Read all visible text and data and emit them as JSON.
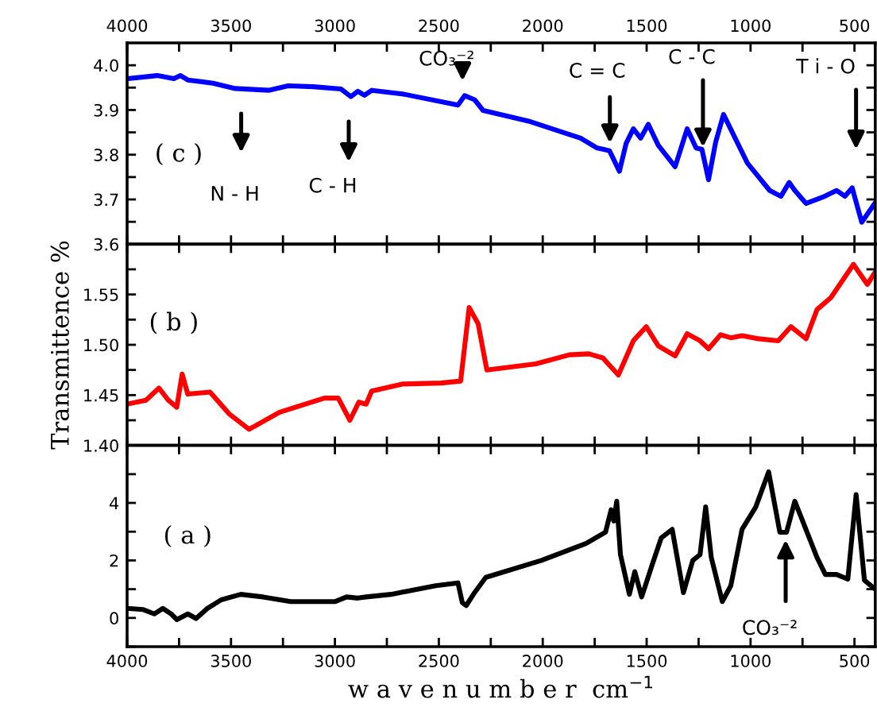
{
  "chart_data": [
    {
      "type": "line",
      "xlim": [
        4000,
        400
      ],
      "xticks": [
        4000,
        {
          "value": 3750,
          "label": null
        },
        3500,
        {
          "value": 3250,
          "label": null
        },
        3000,
        {
          "value": 2750,
          "label": null
        },
        2500,
        {
          "value": 2250,
          "label": null
        },
        2000,
        {
          "value": 1750,
          "label": null
        },
        1500,
        {
          "value": 1250,
          "label": null
        },
        1000,
        {
          "value": 750,
          "label": null
        },
        500
      ],
      "x2lim": [
        4000,
        400
      ],
      "x2ticks": [
        4000,
        {
          "value": 3750,
          "label": null
        },
        3500,
        {
          "value": 3250,
          "label": null
        },
        3000,
        {
          "value": 2750,
          "label": null
        },
        2500,
        {
          "value": 2250,
          "label": null
        },
        2000,
        {
          "value": 1750,
          "label": null
        },
        1500,
        {
          "value": 1250,
          "label": null
        },
        1000,
        {
          "value": 750,
          "label": null
        },
        500
      ],
      "ylim": [
        3.6,
        4.05
      ],
      "yticks": [
        3.6,
        {
          "value": 3.65,
          "label": null
        },
        3.7,
        {
          "value": 3.75,
          "label": null
        },
        3.8,
        {
          "value": 3.85,
          "label": null
        },
        3.9,
        {
          "value": 3.95,
          "label": null
        },
        {
          "value": 4.0,
          "label": "4.0"
        }
      ],
      "tick_labels": "y",
      "x": [
        4000,
        3855,
        3775,
        3743,
        3708,
        3587,
        3480,
        3319,
        3225,
        3105,
        2971,
        2923,
        2890,
        2858,
        2823,
        2676,
        2408,
        2376,
        2328,
        2287,
        2060,
        1818,
        1738,
        1679,
        1631,
        1599,
        1564,
        1529,
        1492,
        1444,
        1363,
        1305,
        1262,
        1234,
        1202,
        1168,
        1130,
        1015,
        908,
        854,
        814,
        787,
        733,
        653,
        586,
        546,
        511,
        465,
        404
      ],
      "series": [
        {
          "color": "#0000ff",
          "values": [
            3.97,
            3.977,
            3.97,
            3.977,
            3.967,
            3.96,
            3.948,
            3.944,
            3.954,
            3.952,
            3.947,
            3.93,
            3.942,
            3.933,
            3.944,
            3.936,
            3.911,
            3.932,
            3.923,
            3.899,
            3.874,
            3.837,
            3.815,
            3.809,
            3.763,
            3.825,
            3.858,
            3.837,
            3.868,
            3.821,
            3.773,
            3.858,
            3.815,
            3.812,
            3.744,
            3.828,
            3.89,
            3.781,
            3.72,
            3.707,
            3.738,
            3.72,
            3.691,
            3.705,
            3.72,
            3.707,
            3.726,
            3.649,
            3.69
          ]
        }
      ],
      "annotations": [
        "( c )",
        "N - H",
        "C - H",
        {
          "text": "CO₃⁻²",
          "x": 2386,
          "y": 3.932
        },
        {
          "text": "C = C",
          "x": 1677,
          "y": 3.809
        },
        {
          "text": "C - C",
          "x": 1229,
          "y": 3.8
        },
        "T i - O"
      ]
    },
    {
      "type": "line",
      "xlim": [
        4000,
        400
      ],
      "xticks": [
        4000,
        {
          "value": 3750,
          "label": null
        },
        3500,
        {
          "value": 3250,
          "label": null
        },
        3000,
        {
          "value": 2750,
          "label": null
        },
        2500,
        {
          "value": 2250,
          "label": null
        },
        2000,
        {
          "value": 1750,
          "label": null
        },
        1500,
        {
          "value": 1250,
          "label": null
        },
        1000,
        {
          "value": 750,
          "label": null
        },
        500
      ],
      "ylim": [
        1.4,
        1.6
      ],
      "yticks": [
        {
          "value": 1.4,
          "label": "1.40"
        },
        {
          "value": 1.425,
          "label": null
        },
        1.45,
        {
          "value": 1.475,
          "label": null
        },
        {
          "value": 1.5,
          "label": "1.50"
        },
        {
          "value": 1.525,
          "label": null
        },
        1.55,
        {
          "value": 1.575,
          "label": null
        },
        {
          "value": 1.6,
          "label": null
        }
      ],
      "tick_labels": "y",
      "ylabel": "Transmittence %",
      "x": [
        4000,
        3909,
        3847,
        3802,
        3761,
        3735,
        3708,
        3601,
        3507,
        3413,
        3266,
        3051,
        2984,
        2928,
        2885,
        2850,
        2823,
        2676,
        2488,
        2395,
        2354,
        2311,
        2269,
        2033,
        1872,
        1778,
        1711,
        1636,
        1564,
        1502,
        1444,
        1363,
        1305,
        1243,
        1202,
        1144,
        1095,
        1041,
        961,
        867,
        806,
        733,
        680,
        613,
        505,
        438,
        404
      ],
      "series": [
        {
          "color": "#ff0000",
          "values": [
            1.441,
            1.445,
            1.457,
            1.445,
            1.438,
            1.471,
            1.451,
            1.453,
            1.431,
            1.416,
            1.433,
            1.447,
            1.447,
            1.425,
            1.443,
            1.441,
            1.454,
            1.461,
            1.462,
            1.464,
            1.537,
            1.521,
            1.475,
            1.481,
            1.49,
            1.491,
            1.487,
            1.47,
            1.504,
            1.518,
            1.499,
            1.489,
            1.511,
            1.504,
            1.496,
            1.51,
            1.507,
            1.509,
            1.506,
            1.504,
            1.518,
            1.506,
            1.535,
            1.547,
            1.58,
            1.56,
            1.571
          ]
        }
      ],
      "annotations": [
        "( b )"
      ]
    },
    {
      "type": "line",
      "xlim": [
        4000,
        400
      ],
      "xticks": [
        4000,
        {
          "value": 3750,
          "label": null
        },
        3500,
        {
          "value": 3250,
          "label": null
        },
        3000,
        {
          "value": 2750,
          "label": null
        },
        2500,
        {
          "value": 2250,
          "label": null
        },
        2000,
        {
          "value": 1750,
          "label": null
        },
        1500,
        {
          "value": 1250,
          "label": null
        },
        1000,
        {
          "value": 750,
          "label": null
        },
        500
      ],
      "ylim": [
        -1,
        6
      ],
      "yticks": [
        {
          "value": -1,
          "label": null
        },
        0,
        {
          "value": 1,
          "label": null
        },
        2,
        {
          "value": 3,
          "label": null
        },
        4,
        {
          "value": 5,
          "label": null
        }
      ],
      "xlabel": "w a v e n u m b e r  cm$^{−1}$",
      "x": [
        4000,
        3922,
        3869,
        3828,
        3788,
        3761,
        3708,
        3668,
        3614,
        3547,
        3453,
        3346,
        3212,
        2998,
        2944,
        2890,
        2850,
        2730,
        2515,
        2408,
        2387,
        2368,
        2328,
        2274,
        2006,
        1792,
        1698,
        1671,
        1658,
        1644,
        1626,
        1583,
        1557,
        1524,
        1471,
        1430,
        1377,
        1323,
        1278,
        1243,
        1216,
        1189,
        1136,
        1095,
        1041,
        975,
        913,
        859,
        827,
        787,
        680,
        640,
        586,
        532,
        492,
        452,
        404
      ],
      "series": [
        {
          "color": "#000000",
          "values": [
            0.33,
            0.29,
            0.14,
            0.33,
            0.14,
            -0.06,
            0.14,
            -0.02,
            0.33,
            0.63,
            0.82,
            0.73,
            0.57,
            0.57,
            0.73,
            0.69,
            0.73,
            0.82,
            1.12,
            1.22,
            0.53,
            0.43,
            0.88,
            1.41,
            2.0,
            2.59,
            2.98,
            3.76,
            3.37,
            4.06,
            2.2,
            0.82,
            1.61,
            0.73,
            1.9,
            2.78,
            3.08,
            0.88,
            2.0,
            2.2,
            3.86,
            2.1,
            0.57,
            1.12,
            3.08,
            3.86,
            5.08,
            2.98,
            2.98,
            4.06,
            2.1,
            1.51,
            1.51,
            1.35,
            4.29,
            1.31,
            1.02
          ]
        }
      ],
      "annotations": [
        "( a )",
        {
          "text": "CO₃⁻²",
          "x": 831,
          "y": 2.98
        }
      ]
    }
  ]
}
